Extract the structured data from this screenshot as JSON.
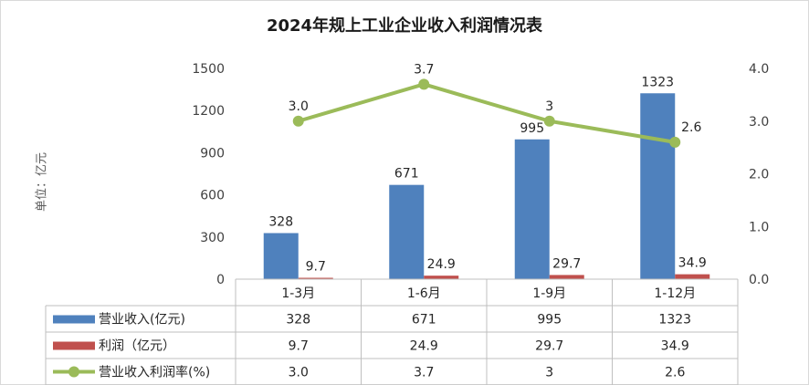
{
  "chart_data": {
    "type": "bar",
    "title": "2024年规上工业企业收入利润情况表",
    "unit_label": "单位：亿元",
    "categories": [
      "1-3月",
      "1-6月",
      "1-9月",
      "1-12月"
    ],
    "y_left": {
      "ylim": [
        0,
        1500
      ],
      "ticks": [
        "0",
        "300",
        "600",
        "900",
        "1200",
        "1500"
      ]
    },
    "y_right": {
      "ylim": [
        0.0,
        4.0
      ],
      "ticks": [
        "0.0",
        "1.0",
        "2.0",
        "3.0",
        "4.0"
      ]
    },
    "grid": false,
    "legend": "table-below",
    "series": [
      {
        "name": "营业收入(亿元)",
        "kind": "bar",
        "axis": "left",
        "color": "#4f81bd",
        "values": [
          328,
          671,
          995,
          1323
        ],
        "labels": [
          "328",
          "671",
          "995",
          "1323"
        ]
      },
      {
        "name": "利润（亿元）",
        "kind": "bar",
        "axis": "left",
        "color": "#c0504d",
        "values": [
          9.7,
          24.9,
          29.7,
          34.9
        ],
        "labels": [
          "9.7",
          "24.9",
          "29.7",
          "34.9"
        ]
      },
      {
        "name": "营业收入利润率(%)",
        "kind": "line",
        "axis": "right",
        "color": "#9bbb59",
        "values": [
          3.0,
          3.7,
          3.0,
          2.6
        ],
        "labels": [
          "3.0",
          "3.7",
          "3",
          "2.6"
        ]
      }
    ]
  }
}
